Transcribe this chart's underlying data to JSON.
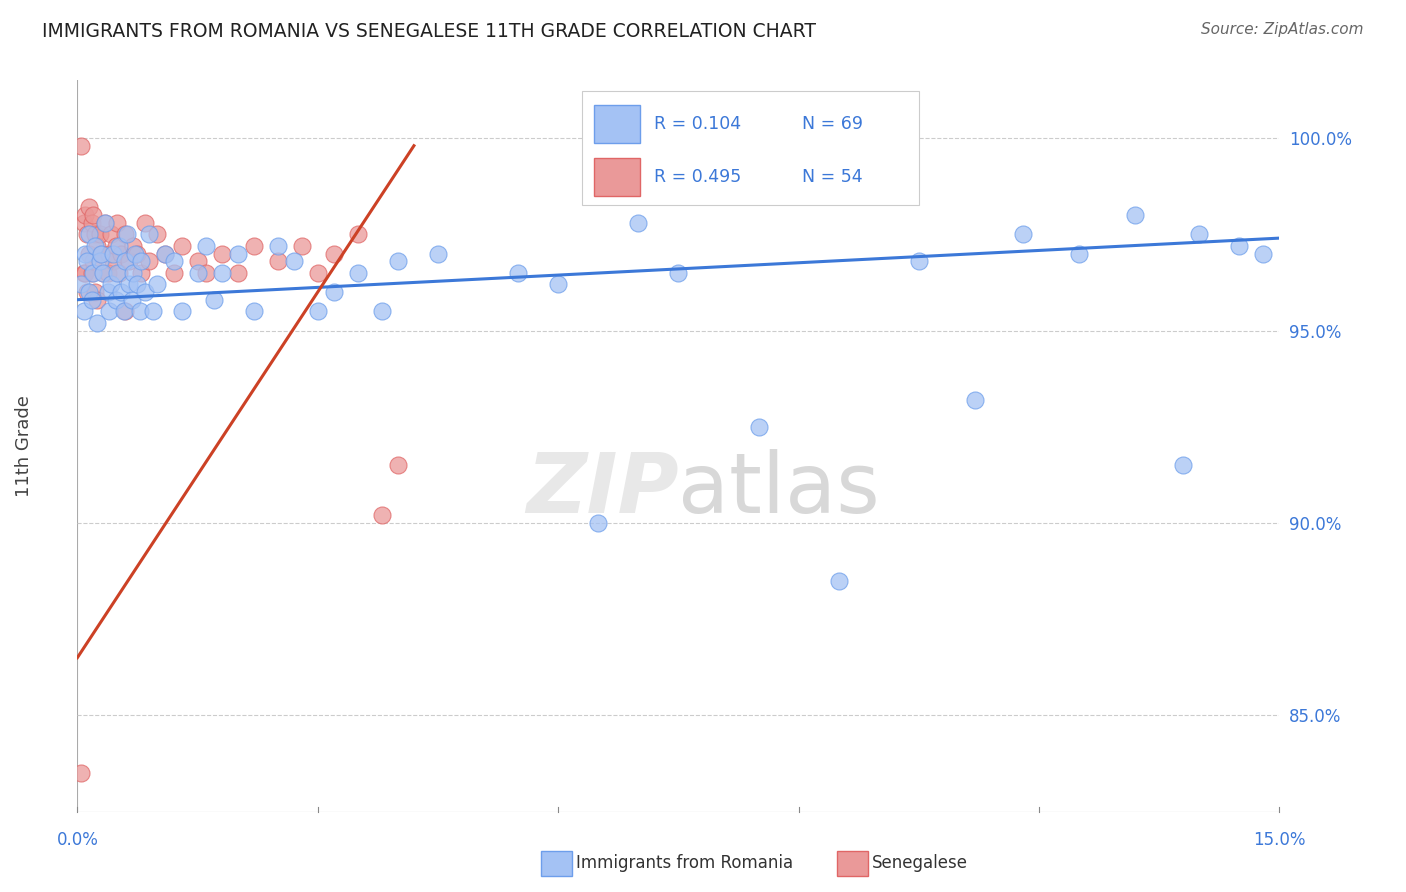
{
  "title": "IMMIGRANTS FROM ROMANIA VS SENEGALESE 11TH GRADE CORRELATION CHART",
  "source": "Source: ZipAtlas.com",
  "ylabel": "11th Grade",
  "xlim": [
    0.0,
    15.0
  ],
  "ylim": [
    82.5,
    101.5
  ],
  "right_yticks": [
    85.0,
    90.0,
    95.0,
    100.0
  ],
  "right_yticklabels": [
    "85.0%",
    "90.0%",
    "95.0%",
    "100.0%"
  ],
  "watermark_zip": "ZIP",
  "watermark_atlas": "atlas",
  "legend_r1": "R = 0.104",
  "legend_n1": "N = 69",
  "legend_r2": "R = 0.495",
  "legend_n2": "N = 54",
  "legend_label1": "Immigrants from Romania",
  "legend_label2": "Senegalese",
  "blue_marker_color": "#a4c2f4",
  "blue_edge_color": "#6d9eeb",
  "pink_marker_color": "#ea9999",
  "pink_edge_color": "#e06666",
  "blue_line_color": "#3c78d8",
  "pink_line_color": "#cc4125",
  "blue_x": [
    0.05,
    0.08,
    0.1,
    0.12,
    0.15,
    0.15,
    0.18,
    0.2,
    0.22,
    0.25,
    0.28,
    0.3,
    0.32,
    0.35,
    0.38,
    0.4,
    0.42,
    0.45,
    0.48,
    0.5,
    0.52,
    0.55,
    0.58,
    0.6,
    0.62,
    0.65,
    0.68,
    0.7,
    0.72,
    0.75,
    0.78,
    0.8,
    0.85,
    0.9,
    0.95,
    1.0,
    1.1,
    1.2,
    1.3,
    1.5,
    1.6,
    1.7,
    1.8,
    2.0,
    2.2,
    2.5,
    2.7,
    3.0,
    3.2,
    3.5,
    3.8,
    4.0,
    4.5,
    5.5,
    6.0,
    7.0,
    7.5,
    8.5,
    9.5,
    10.5,
    11.2,
    11.8,
    12.5,
    13.2,
    13.8,
    14.0,
    14.5,
    14.8,
    6.5
  ],
  "blue_y": [
    96.2,
    95.5,
    97.0,
    96.8,
    97.5,
    96.0,
    95.8,
    96.5,
    97.2,
    95.2,
    96.8,
    97.0,
    96.5,
    97.8,
    96.0,
    95.5,
    96.2,
    97.0,
    95.8,
    96.5,
    97.2,
    96.0,
    95.5,
    96.8,
    97.5,
    96.2,
    95.8,
    96.5,
    97.0,
    96.2,
    95.5,
    96.8,
    96.0,
    97.5,
    95.5,
    96.2,
    97.0,
    96.8,
    95.5,
    96.5,
    97.2,
    95.8,
    96.5,
    97.0,
    95.5,
    97.2,
    96.8,
    95.5,
    96.0,
    96.5,
    95.5,
    96.8,
    97.0,
    96.5,
    96.2,
    97.8,
    96.5,
    92.5,
    88.5,
    96.8,
    93.2,
    97.5,
    97.0,
    98.0,
    91.5,
    97.5,
    97.2,
    97.0,
    90.0
  ],
  "pink_x": [
    0.05,
    0.08,
    0.08,
    0.1,
    0.1,
    0.12,
    0.12,
    0.15,
    0.15,
    0.18,
    0.18,
    0.2,
    0.2,
    0.22,
    0.22,
    0.25,
    0.25,
    0.28,
    0.3,
    0.32,
    0.35,
    0.38,
    0.4,
    0.42,
    0.45,
    0.48,
    0.5,
    0.52,
    0.55,
    0.6,
    0.65,
    0.7,
    0.75,
    0.8,
    0.85,
    0.9,
    1.0,
    1.1,
    1.2,
    1.3,
    1.5,
    1.6,
    1.8,
    2.0,
    2.2,
    2.5,
    2.8,
    3.0,
    3.2,
    3.5,
    3.8,
    4.0,
    0.05,
    0.6
  ],
  "pink_y": [
    83.5,
    97.8,
    96.5,
    98.0,
    96.5,
    97.5,
    96.0,
    98.2,
    97.0,
    97.8,
    96.5,
    98.0,
    96.8,
    97.5,
    96.0,
    97.2,
    95.8,
    97.5,
    97.0,
    96.5,
    97.8,
    96.5,
    97.0,
    97.5,
    96.8,
    97.2,
    97.8,
    96.5,
    97.0,
    97.5,
    96.8,
    97.2,
    97.0,
    96.5,
    97.8,
    96.8,
    97.5,
    97.0,
    96.5,
    97.2,
    96.8,
    96.5,
    97.0,
    96.5,
    97.2,
    96.8,
    97.2,
    96.5,
    97.0,
    97.5,
    90.2,
    91.5,
    99.8,
    95.5
  ],
  "blue_trend_x": [
    0.0,
    15.0
  ],
  "blue_trend_y": [
    95.8,
    97.4
  ],
  "pink_trend_x": [
    0.0,
    4.2
  ],
  "pink_trend_y": [
    86.5,
    99.8
  ]
}
